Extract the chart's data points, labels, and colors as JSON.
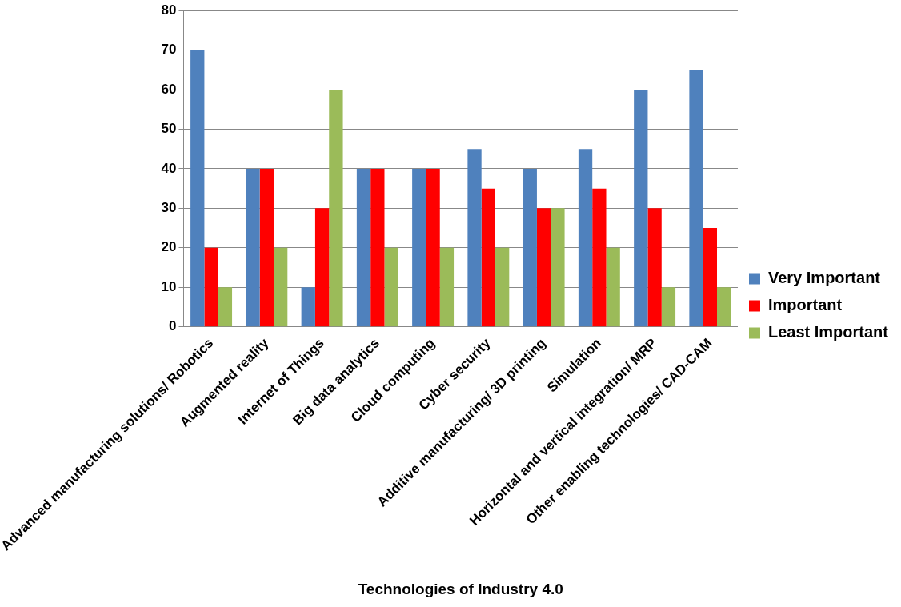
{
  "chart_data": {
    "type": "bar",
    "xlabel": "Technologies of Industry 4.0",
    "categories": [
      "Advanced manufacturing solutions/ Robotics",
      "Augmented reality",
      "Internet of Things",
      "Big data analytics",
      "Cloud computing",
      "Cyber security",
      "Additive manufacturing/ 3D printing",
      "Simulation",
      "Horizontal and vertical integration/ MRP",
      "Other enabling technologies/ CAD-CAM"
    ],
    "series": [
      {
        "name": "Very Important",
        "color": "#4f81bd",
        "values": [
          70,
          40,
          10,
          40,
          40,
          45,
          40,
          45,
          60,
          65
        ]
      },
      {
        "name": "Important",
        "color": "#ff0000",
        "values": [
          20,
          40,
          30,
          40,
          40,
          35,
          30,
          35,
          30,
          25
        ]
      },
      {
        "name": "Least Important",
        "color": "#9bbb59",
        "values": [
          10,
          20,
          60,
          20,
          20,
          20,
          30,
          20,
          10,
          10
        ]
      }
    ],
    "ylim": [
      0,
      80
    ],
    "yticks": [
      0,
      10,
      20,
      30,
      40,
      50,
      60,
      70,
      80
    ],
    "grid": "y",
    "legend": "right"
  }
}
